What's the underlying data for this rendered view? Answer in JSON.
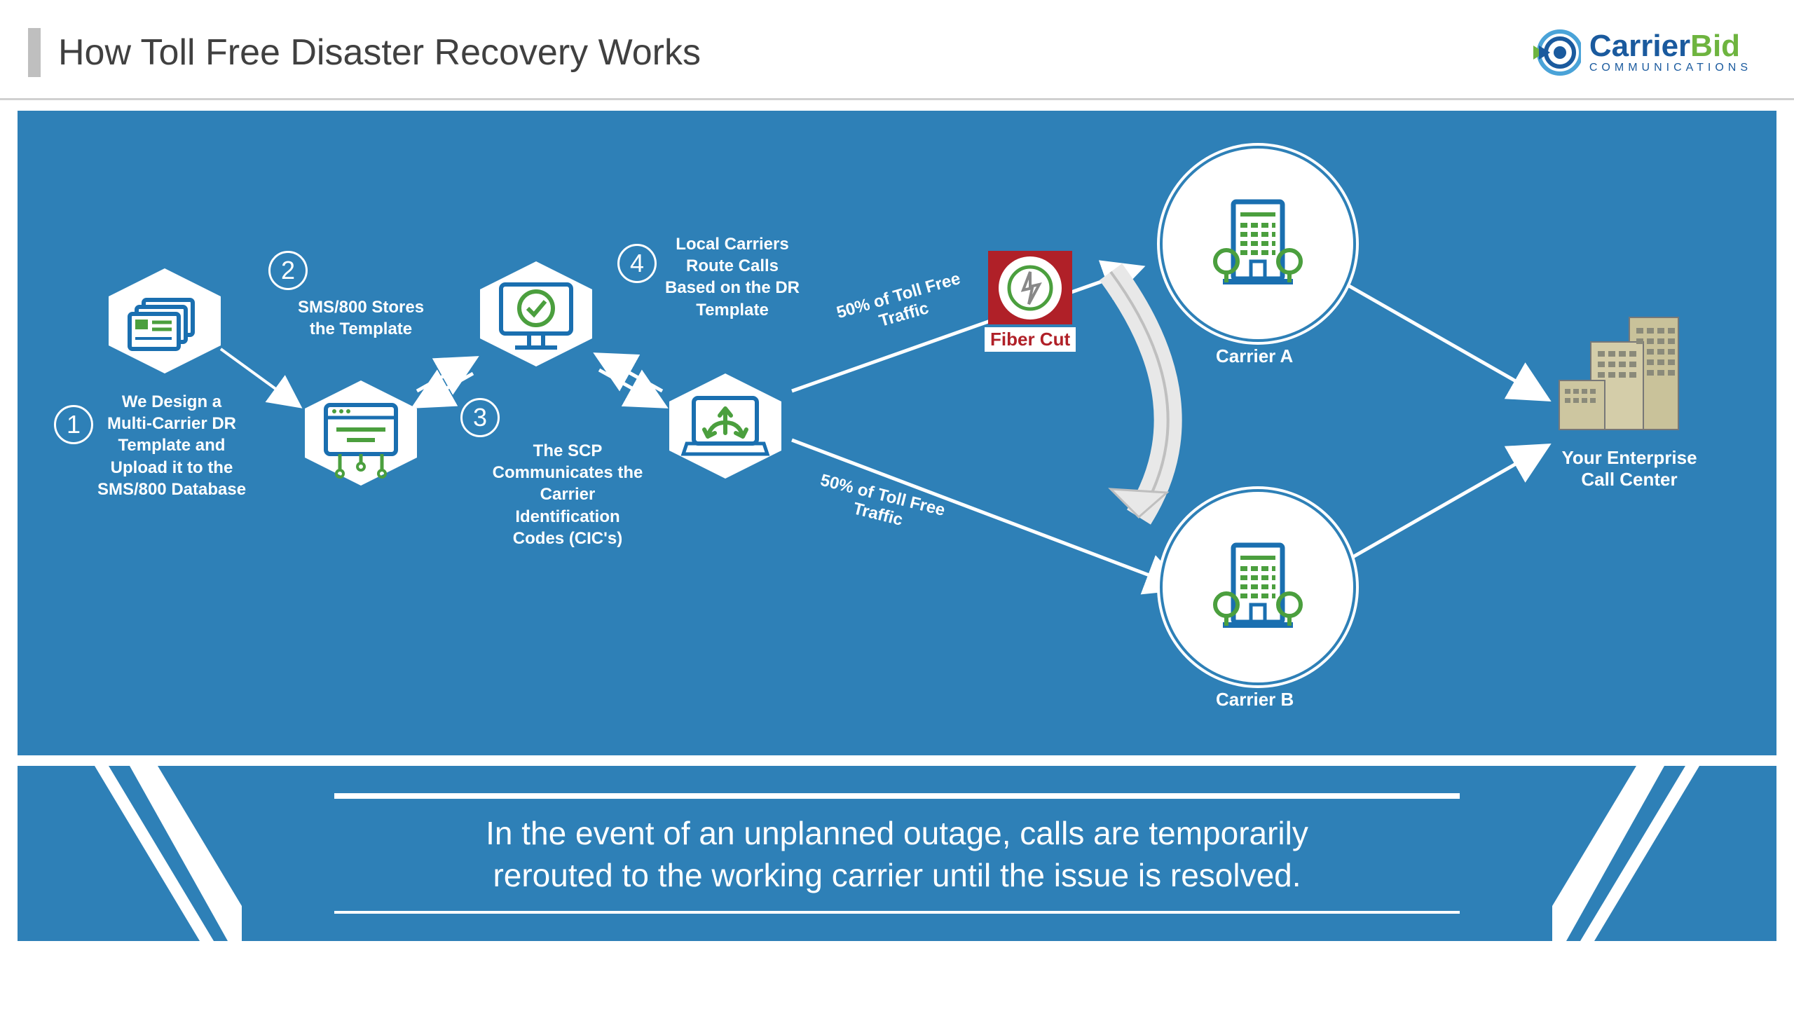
{
  "title": "How Toll Free Disaster Recovery Works",
  "logo": {
    "carrier": "Carrier",
    "bid": "Bid",
    "sub": "COMMUNICATIONS"
  },
  "steps": {
    "s1": {
      "num": "1",
      "label": "We Design a\nMulti-Carrier DR\nTemplate and\nUpload it to the\nSMS/800 Database"
    },
    "s2": {
      "num": "2",
      "label": "SMS/800 Stores\nthe Template"
    },
    "s3": {
      "num": "3",
      "label": "The SCP\nCommunicates the\nCarrier\nIdentification\nCodes (CIC's)"
    },
    "s4": {
      "num": "4",
      "label": "Local Carriers\nRoute Calls\nBased on the DR\nTemplate"
    }
  },
  "traffic": {
    "top": "50% of Toll Free\nTraffic",
    "bottom": "50% of Toll Free\nTraffic"
  },
  "carriers": {
    "a": "Carrier A",
    "b": "Carrier B"
  },
  "fiberCut": "Fiber Cut",
  "endpoint": "Your Enterprise\nCall Center",
  "footer": "In the event of an unplanned outage, calls are temporarily\nrerouted to the working carrier until the issue is resolved.",
  "colors": {
    "bg": "#2e80b7",
    "white": "#ffffff",
    "icon_blue": "#1a6fb0",
    "icon_green": "#4b9f3e",
    "red": "#b02028",
    "building": "#c9c29a",
    "logo_blue": "#1a5a9e",
    "logo_green": "#6eb43f"
  }
}
